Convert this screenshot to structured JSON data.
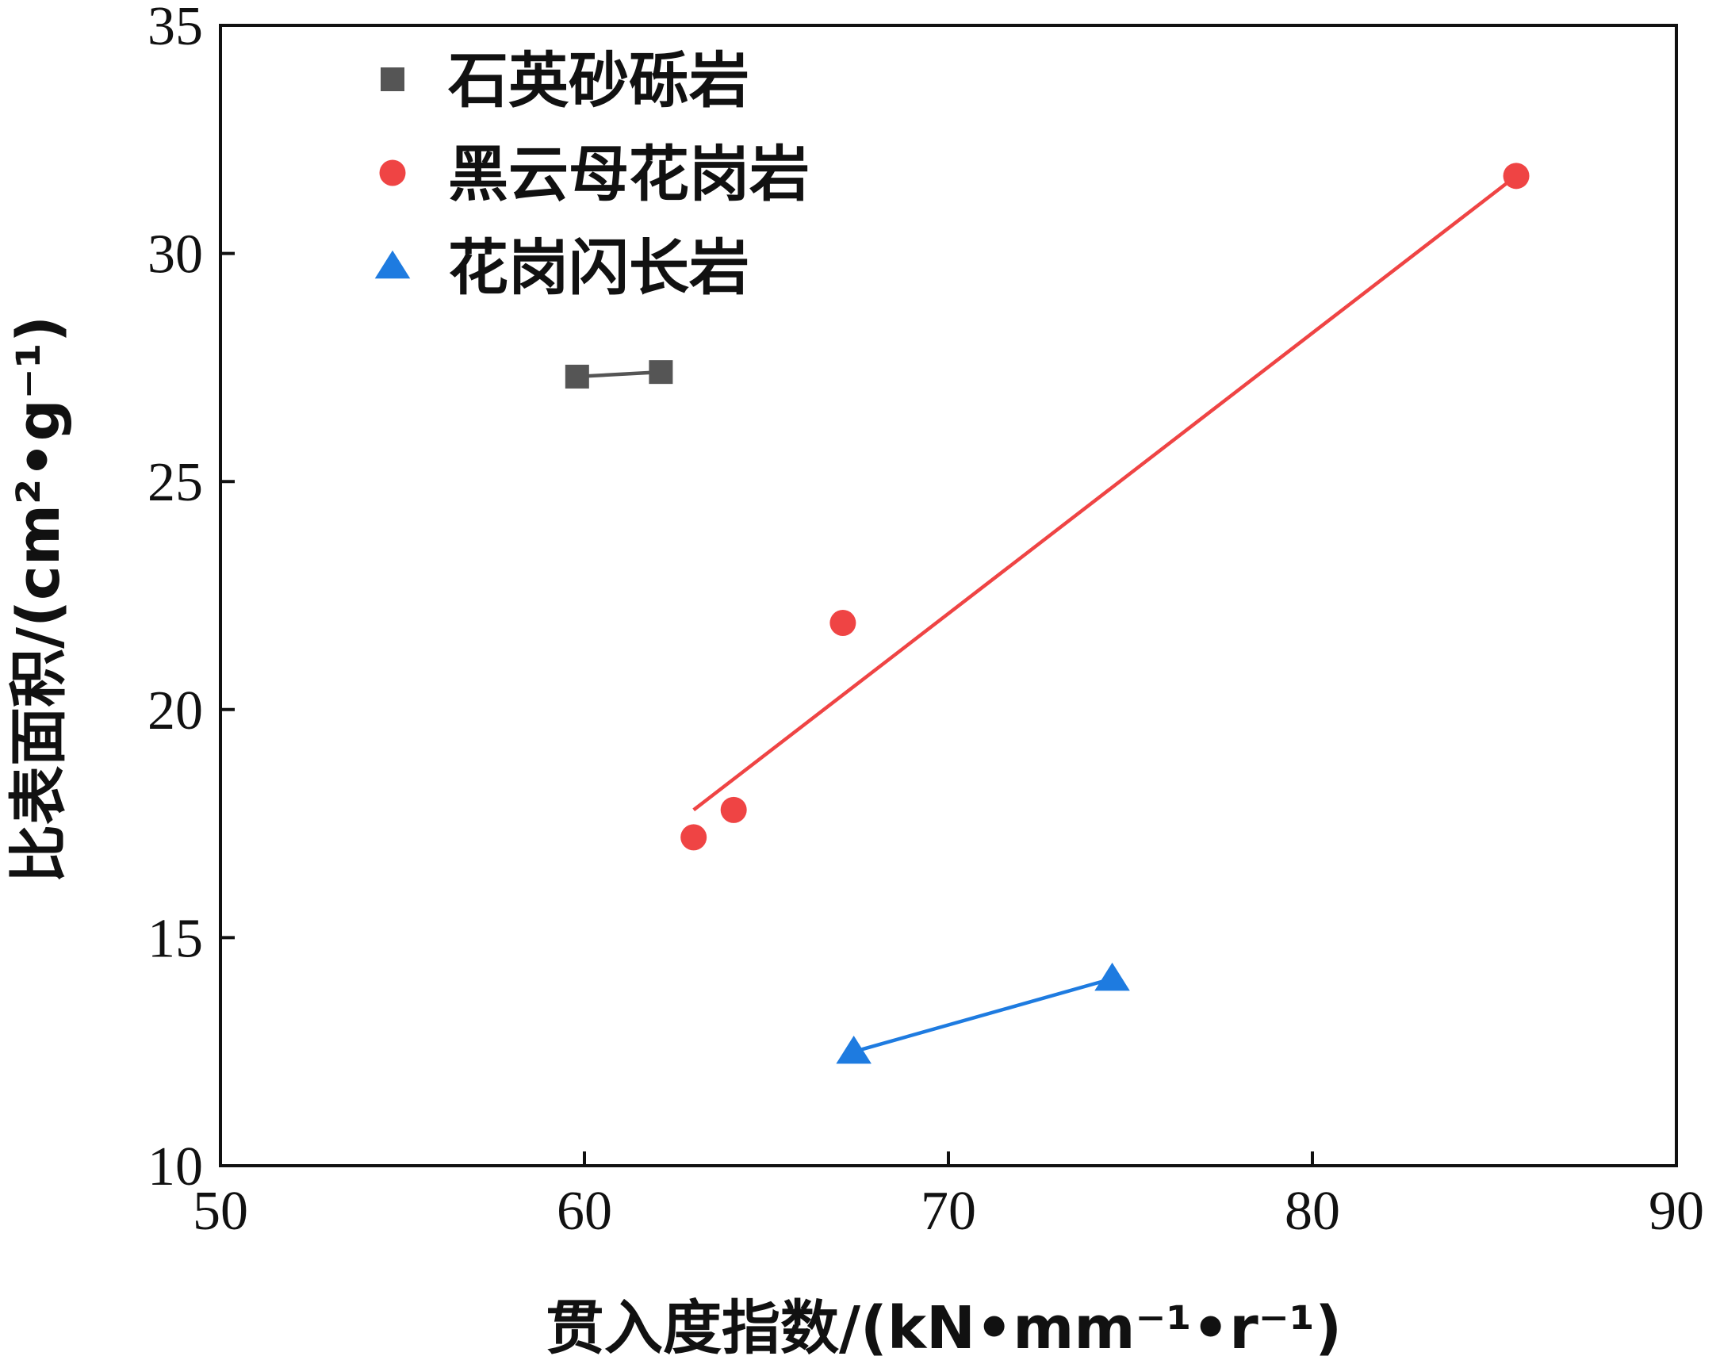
{
  "chart_data": {
    "type": "scatter",
    "xlabel": "贯入度指数/(kN•mm⁻¹•r⁻¹)",
    "ylabel": "比表面积/(cm²•g⁻¹)",
    "xlim": [
      50,
      90
    ],
    "ylim": [
      10,
      35
    ],
    "xticks": [
      50,
      60,
      70,
      80,
      90
    ],
    "yticks": [
      10,
      15,
      20,
      25,
      30,
      35
    ],
    "legend_position": "top-left",
    "grid": false,
    "series": [
      {
        "name": "石英砂砾岩",
        "marker": "square",
        "color": "#555555",
        "points": [
          [
            59.8,
            27.3
          ],
          [
            62.1,
            27.4
          ]
        ],
        "fit": [
          [
            59.8,
            27.3
          ],
          [
            62.1,
            27.4
          ]
        ]
      },
      {
        "name": "黑云母花岗岩",
        "marker": "circle",
        "color": "#ef4444",
        "points": [
          [
            63.0,
            17.2
          ],
          [
            64.1,
            17.8
          ],
          [
            67.1,
            21.9
          ],
          [
            85.6,
            31.7
          ]
        ],
        "fit": [
          [
            63.0,
            17.8
          ],
          [
            85.6,
            31.7
          ]
        ]
      },
      {
        "name": "花岗闪长岩",
        "marker": "triangle",
        "color": "#1e7be0",
        "points": [
          [
            67.4,
            12.5
          ],
          [
            74.5,
            14.1
          ]
        ],
        "fit": [
          [
            67.4,
            12.5
          ],
          [
            74.5,
            14.1
          ]
        ]
      }
    ]
  }
}
